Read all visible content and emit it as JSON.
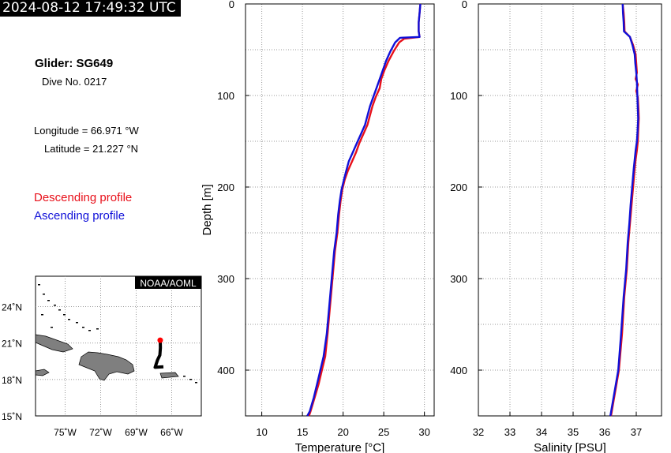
{
  "header": {
    "timestamp": "2024-08-12 17:49:32 UTC"
  },
  "info": {
    "glider": "Glider: SG649",
    "dive": "Dive No. 0217",
    "longitude": "Longitude = 66.971 °W",
    "latitude": "Latitude = 21.227 °N"
  },
  "legend": {
    "descending": "Descending profile",
    "ascending": "Ascending profile"
  },
  "colors": {
    "descending": "#e8101a",
    "ascending": "#1010d8",
    "land": "#7f7f7f",
    "track": "#000000",
    "position": "#ff0000"
  },
  "map": {
    "credit": "NOAA/AOML",
    "lat_ticks": [
      "24˚N",
      "21˚N",
      "18˚N",
      "15˚N"
    ],
    "lon_ticks": [
      "75˚W",
      "72˚W",
      "69˚W",
      "66˚W"
    ],
    "lon_range": [
      -77.5,
      -63.5
    ],
    "lat_range": [
      15,
      26.5
    ],
    "track": [
      [
        -66.97,
        21.23
      ],
      [
        -66.95,
        20.6
      ],
      [
        -67.0,
        20.0
      ],
      [
        -67.2,
        19.6
      ],
      [
        -67.4,
        19.0
      ],
      [
        -66.7,
        19.05
      ]
    ]
  },
  "chart_data": [
    {
      "type": "line",
      "xlabel": "Temperature [°C]",
      "ylabel": "Depth [m]",
      "xlim": [
        8,
        31.2
      ],
      "ylim": [
        450,
        0
      ],
      "x_ticks": [
        10,
        15,
        20,
        25,
        30
      ],
      "y_ticks": [
        0,
        100,
        200,
        300,
        400
      ],
      "grid": true,
      "series": [
        {
          "name": "Descending profile",
          "points": [
            [
              29.5,
              0
            ],
            [
              29.4,
              10
            ],
            [
              29.3,
              20
            ],
            [
              29.3,
              30
            ],
            [
              29.4,
              36
            ],
            [
              27.5,
              38
            ],
            [
              26.9,
              42
            ],
            [
              26.2,
              52
            ],
            [
              25.6,
              62
            ],
            [
              25.1,
              72
            ],
            [
              24.7,
              82
            ],
            [
              24.5,
              92
            ],
            [
              24.0,
              102
            ],
            [
              23.6,
              112
            ],
            [
              23.3,
              122
            ],
            [
              23.0,
              132
            ],
            [
              22.5,
              142
            ],
            [
              22.0,
              152
            ],
            [
              21.6,
              162
            ],
            [
              21.1,
              172
            ],
            [
              20.6,
              182
            ],
            [
              20.2,
              192
            ],
            [
              19.9,
              203
            ],
            [
              19.7,
              215
            ],
            [
              19.5,
              230
            ],
            [
              19.3,
              250
            ],
            [
              19.0,
              270
            ],
            [
              18.7,
              300
            ],
            [
              18.4,
              330
            ],
            [
              18.1,
              360
            ],
            [
              17.8,
              385
            ],
            [
              17.4,
              400
            ],
            [
              17.0,
              415
            ],
            [
              16.5,
              430
            ],
            [
              16.0,
              445
            ],
            [
              15.8,
              450
            ]
          ]
        },
        {
          "name": "Ascending profile",
          "points": [
            [
              29.5,
              0
            ],
            [
              29.4,
              10
            ],
            [
              29.3,
              20
            ],
            [
              29.3,
              30
            ],
            [
              29.4,
              36
            ],
            [
              27.0,
              37
            ],
            [
              26.4,
              42
            ],
            [
              25.8,
              52
            ],
            [
              25.3,
              62
            ],
            [
              24.9,
              72
            ],
            [
              24.5,
              82
            ],
            [
              24.1,
              92
            ],
            [
              23.7,
              102
            ],
            [
              23.3,
              112
            ],
            [
              23.0,
              122
            ],
            [
              22.7,
              132
            ],
            [
              22.2,
              142
            ],
            [
              21.7,
              152
            ],
            [
              21.2,
              162
            ],
            [
              20.7,
              172
            ],
            [
              20.4,
              182
            ],
            [
              20.1,
              192
            ],
            [
              19.8,
              203
            ],
            [
              19.6,
              215
            ],
            [
              19.4,
              230
            ],
            [
              19.2,
              250
            ],
            [
              18.9,
              270
            ],
            [
              18.6,
              300
            ],
            [
              18.3,
              330
            ],
            [
              18.0,
              360
            ],
            [
              17.6,
              385
            ],
            [
              17.2,
              400
            ],
            [
              16.8,
              415
            ],
            [
              16.4,
              430
            ],
            [
              15.9,
              445
            ],
            [
              15.6,
              450
            ]
          ]
        }
      ]
    },
    {
      "type": "line",
      "xlabel": "Salinity [PSU]",
      "ylabel": "",
      "xlim": [
        32,
        37.8
      ],
      "ylim": [
        450,
        0
      ],
      "x_ticks": [
        32,
        33,
        34,
        35,
        36,
        37
      ],
      "y_ticks": [
        0,
        100,
        200,
        300,
        400
      ],
      "grid": true,
      "series": [
        {
          "name": "Descending profile",
          "points": [
            [
              36.57,
              0
            ],
            [
              36.6,
              10
            ],
            [
              36.62,
              20
            ],
            [
              36.63,
              30
            ],
            [
              36.8,
              36
            ],
            [
              36.9,
              45
            ],
            [
              36.98,
              55
            ],
            [
              37.0,
              65
            ],
            [
              37.02,
              75
            ],
            [
              36.98,
              82
            ],
            [
              37.05,
              88
            ],
            [
              37.0,
              95
            ],
            [
              37.05,
              102
            ],
            [
              37.07,
              115
            ],
            [
              37.08,
              125
            ],
            [
              37.06,
              140
            ],
            [
              37.05,
              150
            ],
            [
              37.02,
              160
            ],
            [
              36.98,
              170
            ],
            [
              36.95,
              180
            ],
            [
              36.9,
              200
            ],
            [
              36.85,
              220
            ],
            [
              36.8,
              240
            ],
            [
              36.75,
              260
            ],
            [
              36.7,
              290
            ],
            [
              36.62,
              320
            ],
            [
              36.55,
              360
            ],
            [
              36.45,
              400
            ],
            [
              36.3,
              430
            ],
            [
              36.2,
              450
            ]
          ]
        },
        {
          "name": "Ascending profile",
          "points": [
            [
              36.57,
              0
            ],
            [
              36.58,
              10
            ],
            [
              36.6,
              20
            ],
            [
              36.61,
              30
            ],
            [
              36.8,
              36
            ],
            [
              36.88,
              45
            ],
            [
              36.95,
              55
            ],
            [
              36.97,
              65
            ],
            [
              37.0,
              75
            ],
            [
              37.02,
              85
            ],
            [
              37.03,
              95
            ],
            [
              37.04,
              105
            ],
            [
              37.05,
              115
            ],
            [
              37.06,
              125
            ],
            [
              37.04,
              140
            ],
            [
              37.02,
              150
            ],
            [
              36.98,
              160
            ],
            [
              36.95,
              170
            ],
            [
              36.92,
              180
            ],
            [
              36.87,
              200
            ],
            [
              36.82,
              220
            ],
            [
              36.78,
              240
            ],
            [
              36.73,
              260
            ],
            [
              36.68,
              290
            ],
            [
              36.6,
              320
            ],
            [
              36.52,
              360
            ],
            [
              36.43,
              400
            ],
            [
              36.28,
              430
            ],
            [
              36.18,
              450
            ]
          ]
        }
      ]
    }
  ]
}
